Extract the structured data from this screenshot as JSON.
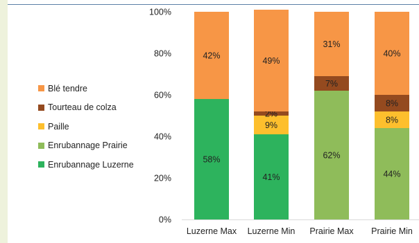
{
  "chart_data": {
    "type": "bar",
    "stacked": true,
    "categories": [
      "Luzerne Max",
      "Luzerne Min",
      "Prairie Max",
      "Prairie Min"
    ],
    "series": [
      {
        "name": "Enrubannage Luzerne",
        "color": "#2db35d",
        "values": [
          58,
          41,
          0,
          0
        ],
        "labels": [
          "58%",
          "41%",
          "",
          ""
        ]
      },
      {
        "name": "Enrubannage Prairie",
        "color": "#8fbc5a",
        "values": [
          0,
          0,
          62,
          44
        ],
        "labels": [
          "",
          "",
          "62%",
          "44%"
        ]
      },
      {
        "name": "Paille",
        "color": "#fdbf2d",
        "values": [
          0,
          9,
          0,
          8
        ],
        "labels": [
          "",
          "9%",
          "",
          "8%"
        ]
      },
      {
        "name": "Tourteau de colza",
        "color": "#944a1f",
        "values": [
          0,
          2,
          7,
          8
        ],
        "labels": [
          "",
          "2%",
          "7%",
          "8%"
        ]
      },
      {
        "name": "Blé tendre",
        "color": "#f79646",
        "values": [
          42,
          49,
          31,
          40
        ],
        "labels": [
          "42%",
          "49%",
          "31%",
          "40%"
        ]
      }
    ],
    "legend_order": [
      "Blé tendre",
      "Tourteau de colza",
      "Paille",
      "Enrubannage Prairie",
      "Enrubannage Luzerne"
    ],
    "legend_position": "left",
    "ylim": [
      0,
      100
    ],
    "yticks": [
      "0%",
      "20%",
      "40%",
      "60%",
      "80%",
      "100%"
    ],
    "title": "",
    "xlabel": "",
    "ylabel": "",
    "grid": false
  }
}
